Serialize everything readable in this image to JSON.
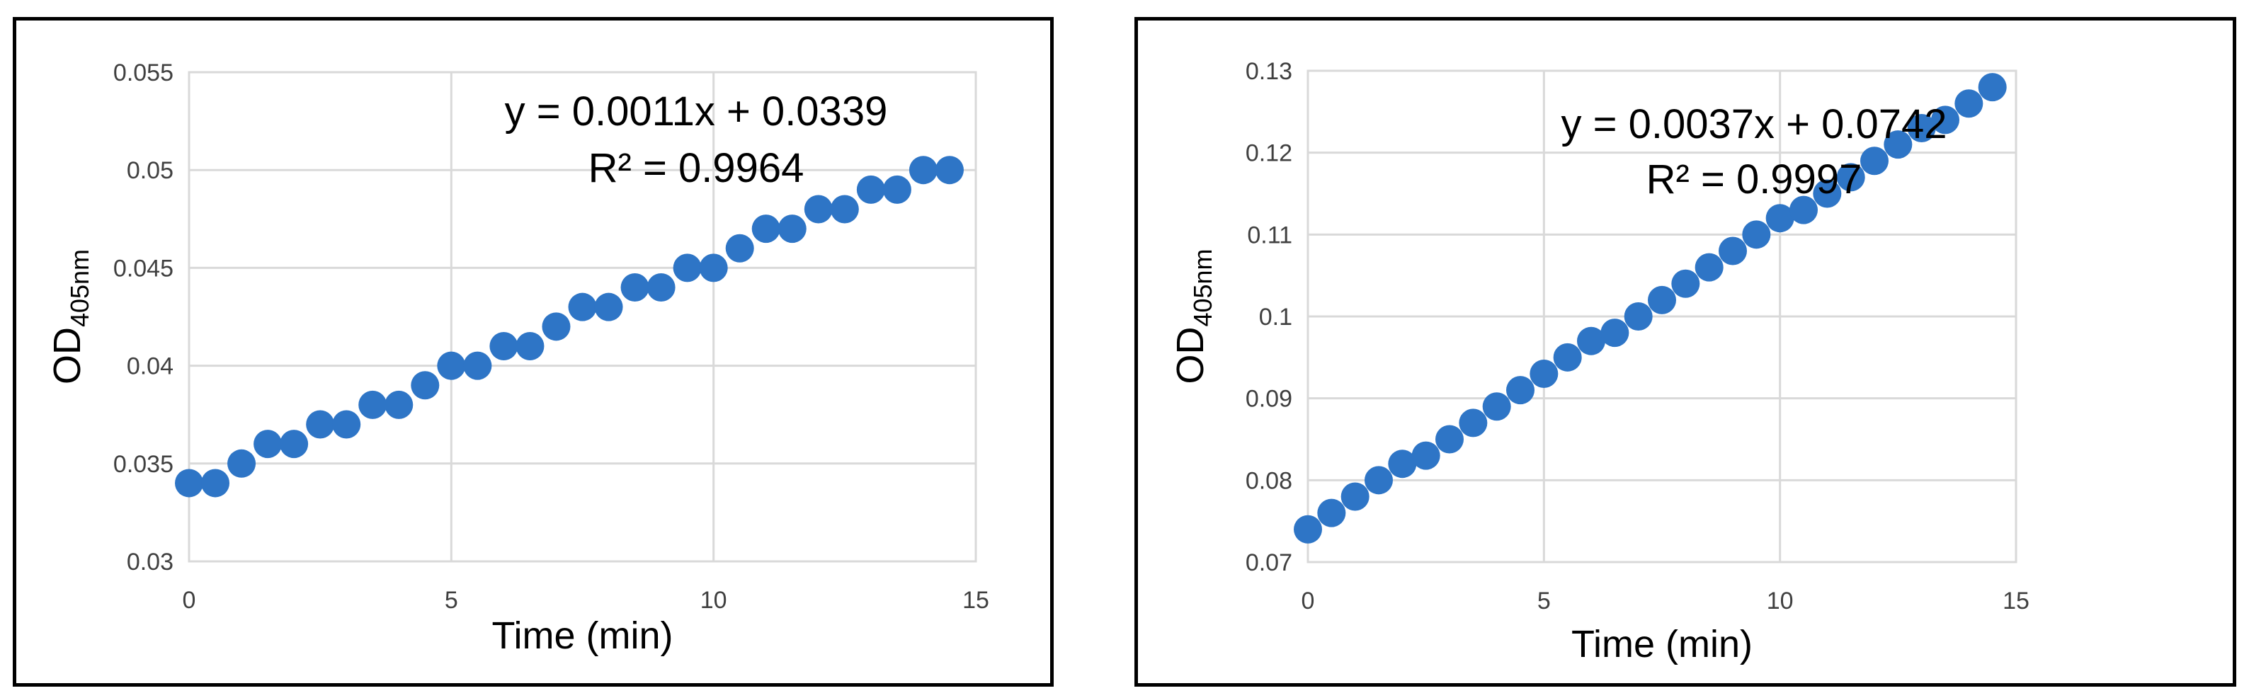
{
  "chart_data": [
    {
      "type": "scatter",
      "title": "",
      "xlabel": "Time (min)",
      "ylabel_main": "OD",
      "ylabel_sub": "405nm",
      "xlim": [
        0,
        15
      ],
      "ylim": [
        0.03,
        0.055
      ],
      "xticks": [
        "0",
        "5",
        "10",
        "15"
      ],
      "yticks": [
        "0.03",
        "0.035",
        "0.04",
        "0.045",
        "0.05",
        "0.055"
      ],
      "grid": true,
      "legend": "none",
      "marker_color": "#2e75c6",
      "trendline_equation": "y = 0.0011x + 0.0339",
      "trendline_r2": "R² = 0.9964",
      "series": [
        {
          "x": [
            0,
            0.5,
            1,
            1.5,
            2,
            2.5,
            3,
            3.5,
            4,
            4.5,
            5,
            5.5,
            6,
            6.5,
            7,
            7.5,
            8,
            8.5,
            9,
            9.5,
            10,
            10.5,
            11,
            11.5,
            12,
            12.5,
            13,
            13.5,
            14,
            14.5
          ],
          "y": [
            0.034,
            0.034,
            0.035,
            0.036,
            0.036,
            0.037,
            0.037,
            0.038,
            0.038,
            0.039,
            0.04,
            0.04,
            0.041,
            0.041,
            0.042,
            0.043,
            0.043,
            0.044,
            0.044,
            0.045,
            0.045,
            0.046,
            0.047,
            0.047,
            0.048,
            0.048,
            0.049,
            0.049,
            0.05,
            0.05
          ]
        }
      ]
    },
    {
      "type": "scatter",
      "title": "",
      "xlabel": "Time (min)",
      "ylabel_main": "OD",
      "ylabel_sub": "405nm",
      "xlim": [
        0,
        15
      ],
      "ylim": [
        0.07,
        0.13
      ],
      "xticks": [
        "0",
        "5",
        "10",
        "15"
      ],
      "yticks": [
        "0.07",
        "0.08",
        "0.09",
        "0.1",
        "0.11",
        "0.12",
        "0.13"
      ],
      "grid": true,
      "legend": "none",
      "marker_color": "#2e75c6",
      "trendline_equation": "y = 0.0037x + 0.0742",
      "trendline_r2": "R² = 0.9997",
      "series": [
        {
          "x": [
            0,
            0.5,
            1,
            1.5,
            2,
            2.5,
            3,
            3.5,
            4,
            4.5,
            5,
            5.5,
            6,
            6.5,
            7,
            7.5,
            8,
            8.5,
            9,
            9.5,
            10,
            10.5,
            11,
            11.5,
            12,
            12.5,
            13,
            13.5,
            14,
            14.5
          ],
          "y": [
            0.074,
            0.076,
            0.078,
            0.08,
            0.082,
            0.083,
            0.085,
            0.087,
            0.089,
            0.091,
            0.093,
            0.095,
            0.097,
            0.098,
            0.1,
            0.102,
            0.104,
            0.106,
            0.108,
            0.11,
            0.112,
            0.113,
            0.115,
            0.117,
            0.119,
            0.121,
            0.123,
            0.124,
            0.126,
            0.128
          ]
        }
      ]
    }
  ]
}
